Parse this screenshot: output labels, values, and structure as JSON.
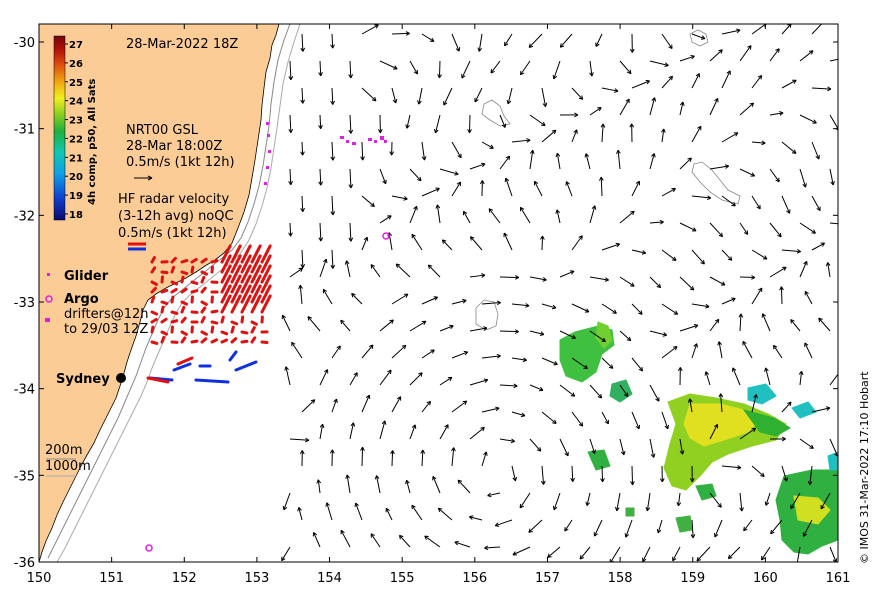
{
  "map": {
    "timestamp": "28-Mar-2022 18Z",
    "x_ticks": [
      "150",
      "151",
      "152",
      "153",
      "154",
      "155",
      "156",
      "157",
      "158",
      "159",
      "160",
      "161"
    ],
    "y_ticks": [
      "-30",
      "-31",
      "-32",
      "-33",
      "-34",
      "-35",
      "-36"
    ],
    "lon_range": [
      150,
      161
    ],
    "lat_range": [
      -36,
      -30
    ],
    "colorbar": {
      "label": "4h comp, p50, All Sats",
      "ticks": [
        "27",
        "26",
        "25",
        "24",
        "23",
        "22",
        "21",
        "20",
        "19",
        "18"
      ]
    },
    "legend": {
      "gsl_title": "NRT00 GSL",
      "gsl_time": "28-Mar 18:00Z",
      "gsl_scale": "0.5m/s (1kt 12h)",
      "hf_title": "HF radar velocity",
      "hf_avg": "(3-12h avg) noQC",
      "hf_scale": "0.5m/s (1kt 12h)",
      "glider": "Glider",
      "argo": "Argo",
      "drifters_1": "drifters@12h",
      "drifters_2": "to 29/03 12Z"
    },
    "city": "Sydney",
    "isobath_1": "200m",
    "isobath_2": "1000m",
    "credit": "© IMOS 31-Mar-2022 17:10 Hobart",
    "colors": {
      "land": "#fbcc96",
      "ocean": "#ffffff",
      "hf_red": "#e01010",
      "hf_blue": "#1030e0",
      "glider": "#e020e0"
    }
  }
}
